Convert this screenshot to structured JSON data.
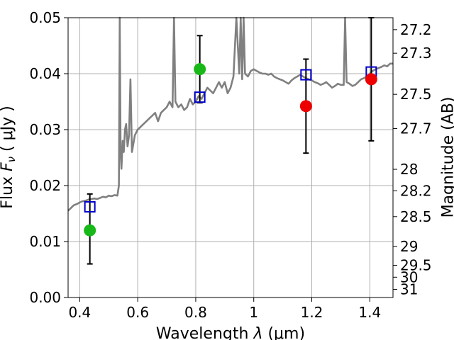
{
  "chart_data": {
    "type": "scatter",
    "xlabel_text": "Wavelength",
    "xlabel_sym": "λ",
    "xlabel_unit": "(μm)",
    "ylabel_text": "Flux",
    "ylabel_sym": "F",
    "ylabel_sub": "ν",
    "ylabel_unit": "( μJy )",
    "y2label": "Magnitude (AB)",
    "xlim": [
      0.36,
      1.48
    ],
    "ylim": [
      0.0,
      0.05
    ],
    "grid": true,
    "x_ticks": [
      0.4,
      0.6,
      0.8,
      1.0,
      1.2,
      1.4
    ],
    "x_tick_labels": [
      "0.4",
      "0.6",
      "0.8",
      "1",
      "1.2",
      "1.4"
    ],
    "y_ticks": [
      0.0,
      0.01,
      0.02,
      0.03,
      0.04,
      0.05
    ],
    "y_tick_labels": [
      "0.00",
      "0.01",
      "0.02",
      "0.03",
      "0.04",
      "0.05"
    ],
    "mag_ticks": [
      27.2,
      27.3,
      27.5,
      27.7,
      28,
      28.2,
      28.5,
      29,
      29.5,
      30,
      31
    ],
    "mag_tick_labels": [
      "27.2",
      "27.3",
      "27.5",
      "27.7",
      "28",
      "28.2",
      "28.5",
      "29",
      "29.5",
      "30",
      "31"
    ],
    "colors": {
      "spectrum": "#808080",
      "model_box": "#0000cc",
      "detected": "#18b818",
      "upper_region": "#ee0000",
      "errorbar": "#000000",
      "grid": "#b0b0b0"
    },
    "spectrum": {
      "x": [
        0.36,
        0.37,
        0.38,
        0.39,
        0.4,
        0.41,
        0.42,
        0.43,
        0.44,
        0.45,
        0.46,
        0.47,
        0.48,
        0.49,
        0.5,
        0.51,
        0.52,
        0.53,
        0.535,
        0.538,
        0.541,
        0.544,
        0.548,
        0.552,
        0.556,
        0.56,
        0.565,
        0.57,
        0.575,
        0.58,
        0.59,
        0.6,
        0.61,
        0.62,
        0.63,
        0.64,
        0.65,
        0.66,
        0.67,
        0.68,
        0.69,
        0.7,
        0.71,
        0.72,
        0.725,
        0.73,
        0.735,
        0.74,
        0.75,
        0.76,
        0.77,
        0.78,
        0.79,
        0.8,
        0.81,
        0.82,
        0.83,
        0.84,
        0.85,
        0.86,
        0.87,
        0.88,
        0.89,
        0.9,
        0.91,
        0.92,
        0.93,
        0.94,
        0.95,
        0.955,
        0.96,
        0.965,
        0.97,
        0.98,
        0.99,
        1.0,
        1.01,
        1.02,
        1.03,
        1.04,
        1.05,
        1.06,
        1.07,
        1.08,
        1.09,
        1.1,
        1.11,
        1.12,
        1.13,
        1.14,
        1.15,
        1.16,
        1.17,
        1.18,
        1.19,
        1.2,
        1.21,
        1.22,
        1.23,
        1.24,
        1.25,
        1.26,
        1.27,
        1.28,
        1.29,
        1.3,
        1.31,
        1.315,
        1.32,
        1.33,
        1.34,
        1.35,
        1.36,
        1.37,
        1.38,
        1.39,
        1.4,
        1.41,
        1.42,
        1.43,
        1.44,
        1.45,
        1.46,
        1.47,
        1.48
      ],
      "y": [
        0.0155,
        0.016,
        0.0165,
        0.0167,
        0.017,
        0.0172,
        0.0173,
        0.0175,
        0.0176,
        0.0177,
        0.0176,
        0.0178,
        0.018,
        0.0179,
        0.0182,
        0.0181,
        0.0183,
        0.0182,
        0.02,
        0.05,
        0.026,
        0.023,
        0.028,
        0.026,
        0.03,
        0.031,
        0.027,
        0.029,
        0.039,
        0.026,
        0.029,
        0.03,
        0.0305,
        0.031,
        0.0315,
        0.032,
        0.0325,
        0.033,
        0.0315,
        0.033,
        0.0335,
        0.034,
        0.035,
        0.034,
        0.05,
        0.035,
        0.0345,
        0.034,
        0.0345,
        0.0335,
        0.034,
        0.0355,
        0.0345,
        0.035,
        0.036,
        0.0355,
        0.0365,
        0.0375,
        0.037,
        0.0365,
        0.0375,
        0.0385,
        0.0375,
        0.0385,
        0.0365,
        0.0375,
        0.0395,
        0.05,
        0.04,
        0.05,
        0.039,
        0.05,
        0.04,
        0.0395,
        0.0405,
        0.0408,
        0.0405,
        0.0402,
        0.04,
        0.04,
        0.0398,
        0.04,
        0.0395,
        0.0392,
        0.039,
        0.0388,
        0.0385,
        0.0382,
        0.0388,
        0.0392,
        0.0395,
        0.0398,
        0.0395,
        0.0392,
        0.039,
        0.0388,
        0.0385,
        0.0383,
        0.038,
        0.0382,
        0.0385,
        0.038,
        0.0375,
        0.0378,
        0.0382,
        0.038,
        0.038,
        0.05,
        0.0385,
        0.0382,
        0.0378,
        0.038,
        0.0385,
        0.039,
        0.0392,
        0.0395,
        0.04,
        0.0405,
        0.0408,
        0.041,
        0.0412,
        0.0415,
        0.0413,
        0.0418,
        0.0418
      ]
    },
    "model_points": [
      {
        "x": 0.435,
        "y": 0.0162
      },
      {
        "x": 0.814,
        "y": 0.0358
      },
      {
        "x": 1.18,
        "y": 0.0398
      },
      {
        "x": 1.405,
        "y": 0.0403
      }
    ],
    "observed_points": [
      {
        "x": 0.435,
        "y": 0.012,
        "yerr_low": 0.006,
        "yerr_high": 0.0185,
        "color": "#18b818"
      },
      {
        "x": 0.814,
        "y": 0.0408,
        "yerr_low": 0.0348,
        "yerr_high": 0.0468,
        "color": "#18b818"
      },
      {
        "x": 1.18,
        "y": 0.0342,
        "yerr_low": 0.0258,
        "yerr_high": 0.0426,
        "color": "#ee0000"
      },
      {
        "x": 1.405,
        "y": 0.039,
        "yerr_low": 0.028,
        "yerr_high": 0.05,
        "color": "#ee0000"
      }
    ]
  }
}
